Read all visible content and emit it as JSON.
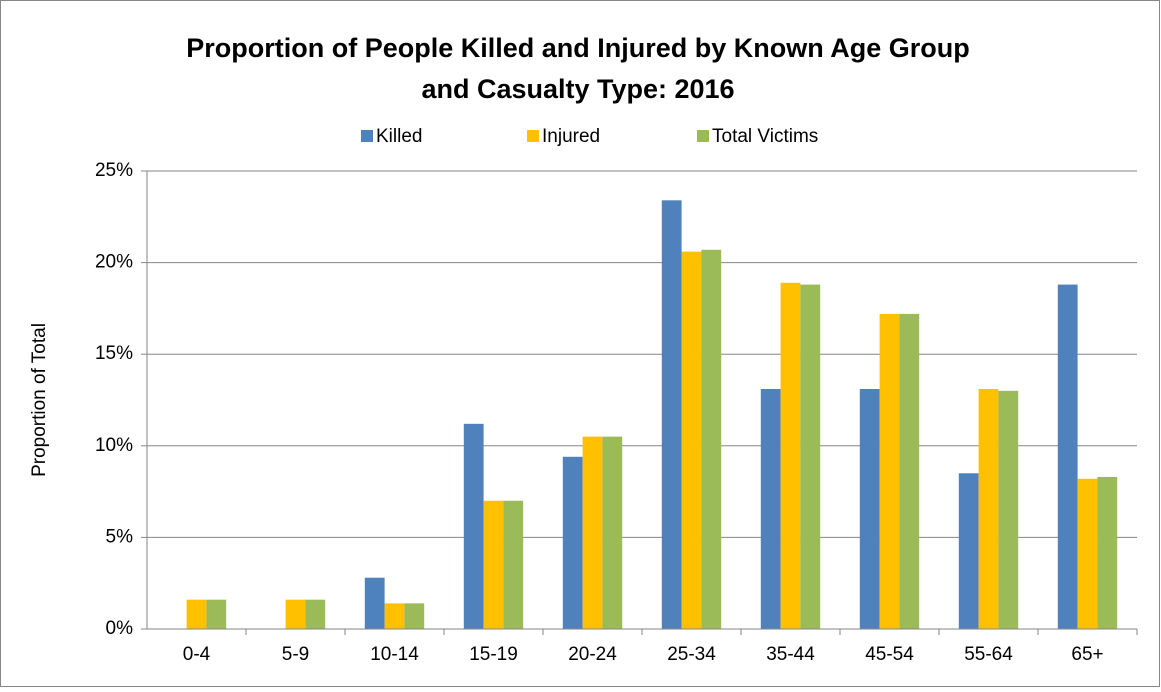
{
  "chart_data": {
    "type": "bar",
    "title": [
      "Proportion of People Killed and Injured by Known Age Group",
      "and Casualty Type: 2016"
    ],
    "y_label": "Proportion of Total",
    "categories": [
      "0-4",
      "5-9",
      "10-14",
      "15-19",
      "20-24",
      "25-34",
      "35-44",
      "45-54",
      "55-64",
      "65+"
    ],
    "series": [
      {
        "name": "Killed",
        "color": "#4f81bd",
        "values": [
          0,
          0,
          2.8,
          11.2,
          9.4,
          23.4,
          13.1,
          13.1,
          8.5,
          18.8
        ]
      },
      {
        "name": "Injured",
        "color": "#ffc000",
        "values": [
          1.6,
          1.6,
          1.4,
          7.0,
          10.5,
          20.6,
          18.9,
          17.2,
          13.1,
          8.2
        ]
      },
      {
        "name": "Total Victims",
        "color": "#9bbb59",
        "values": [
          1.6,
          1.6,
          1.4,
          7.0,
          10.5,
          20.7,
          18.8,
          17.2,
          13.0,
          8.3
        ]
      }
    ],
    "ylim": [
      0,
      25
    ],
    "yticks": [
      {
        "value": 0,
        "label": "0%"
      },
      {
        "value": 5,
        "label": "5%"
      },
      {
        "value": 10,
        "label": "10%"
      },
      {
        "value": 15,
        "label": "15%"
      },
      {
        "value": 20,
        "label": "20%"
      },
      {
        "value": 25,
        "label": "25%"
      }
    ],
    "grid": true,
    "legend": "top"
  }
}
